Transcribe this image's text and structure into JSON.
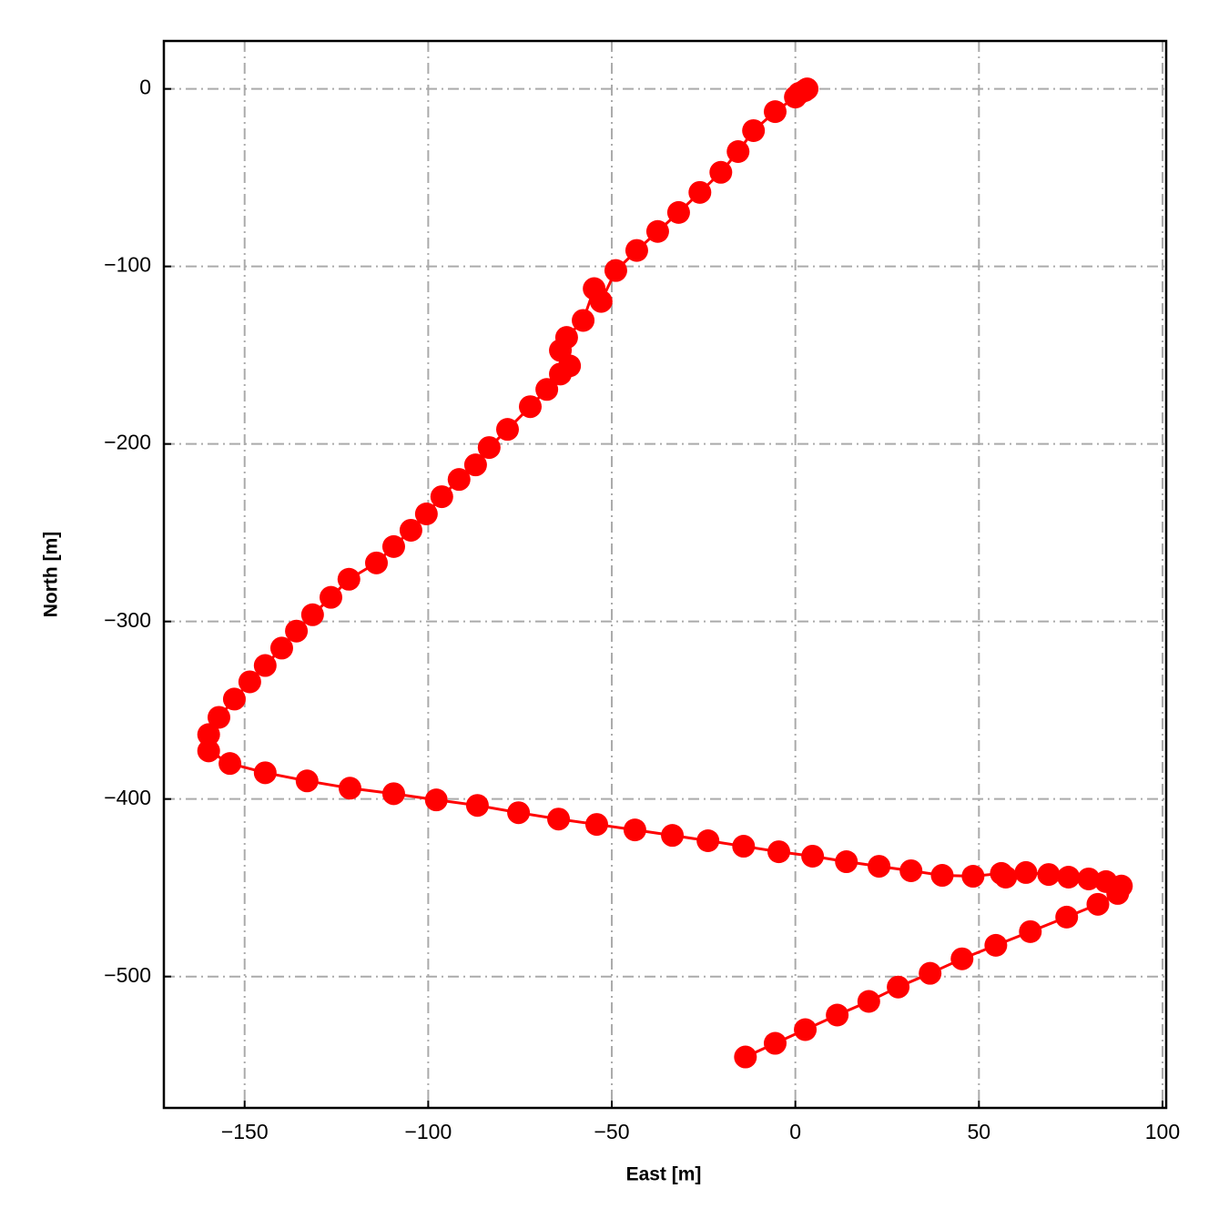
{
  "chart_data": {
    "type": "line",
    "xlabel": "East [m]",
    "ylabel": "North [m]",
    "series": [
      {
        "color": "#ff0000",
        "x": [
          3.2,
          2.5,
          1.0,
          0.0,
          -5.5,
          -11.4,
          -15.6,
          -20.3,
          -26.0,
          -31.8,
          -37.5,
          -43.2,
          -48.9,
          -52.9,
          -54.8,
          -57.8,
          -62.3,
          -64.0,
          -61.5,
          -64.0,
          -67.7,
          -72.2,
          -78.4,
          -83.4,
          -87.1,
          -91.6,
          -96.3,
          -100.5,
          -104.7,
          -109.4,
          -114.1,
          -121.6,
          -126.5,
          -131.5,
          -135.9,
          -139.9,
          -144.4,
          -148.6,
          -152.8,
          -157.0,
          -159.8,
          -159.8,
          -154.0,
          -144.4,
          -133.0,
          -121.3,
          -109.4,
          -97.8,
          -86.6,
          -75.4,
          -64.5,
          -54.1,
          -43.7,
          -33.5,
          -23.8,
          -14.1,
          -4.5,
          4.7,
          13.9,
          22.8,
          31.5,
          40.0,
          48.4,
          56.1,
          57.3,
          62.8,
          69.0,
          74.4,
          79.9,
          84.6,
          88.8,
          87.8,
          82.4,
          73.9,
          64.0,
          54.6,
          45.4,
          36.7,
          28.0,
          20.0,
          11.4,
          2.7,
          -5.5,
          -13.6
        ],
        "values": [
          0.0,
          -1.0,
          -2.5,
          -4.6,
          -12.8,
          -23.5,
          -35.3,
          -47.0,
          -58.3,
          -69.6,
          -80.3,
          -91.0,
          -102.3,
          -119.7,
          -112.5,
          -130.4,
          -140.0,
          -147.3,
          -156.0,
          -160.6,
          -169.3,
          -179.0,
          -191.8,
          -202.0,
          -211.8,
          -220.0,
          -229.7,
          -239.4,
          -248.6,
          -257.8,
          -267.0,
          -276.2,
          -286.4,
          -296.2,
          -305.4,
          -315.0,
          -324.8,
          -334.0,
          -343.7,
          -354.0,
          -363.7,
          -372.9,
          -380.0,
          -385.2,
          -389.8,
          -393.9,
          -397.0,
          -400.5,
          -403.6,
          -407.7,
          -411.3,
          -414.3,
          -417.4,
          -420.5,
          -423.5,
          -426.6,
          -429.7,
          -432.2,
          -435.3,
          -437.9,
          -440.4,
          -443.0,
          -443.5,
          -441.9,
          -444.0,
          -441.4,
          -442.5,
          -444.0,
          -445.0,
          -446.5,
          -449.0,
          -453.2,
          -459.3,
          -466.5,
          -474.7,
          -482.4,
          -490.0,
          -498.2,
          -505.9,
          -514.0,
          -521.7,
          -529.9,
          -537.6,
          -545.3
        ]
      }
    ],
    "xlim": [
      -172,
      101
    ],
    "ylim": [
      -574,
      27
    ],
    "xticks": [
      {
        "value": -150,
        "label": "−150"
      },
      {
        "value": -100,
        "label": "−100"
      },
      {
        "value": -50,
        "label": "−50"
      },
      0,
      50,
      100
    ],
    "yticks": [
      {
        "value": -500,
        "label": "−500"
      },
      {
        "value": -400,
        "label": "−400"
      },
      {
        "value": -300,
        "label": "−300"
      },
      {
        "value": -200,
        "label": "−200"
      },
      {
        "value": -100,
        "label": "−100"
      },
      0
    ],
    "grid": true,
    "markers": true
  }
}
